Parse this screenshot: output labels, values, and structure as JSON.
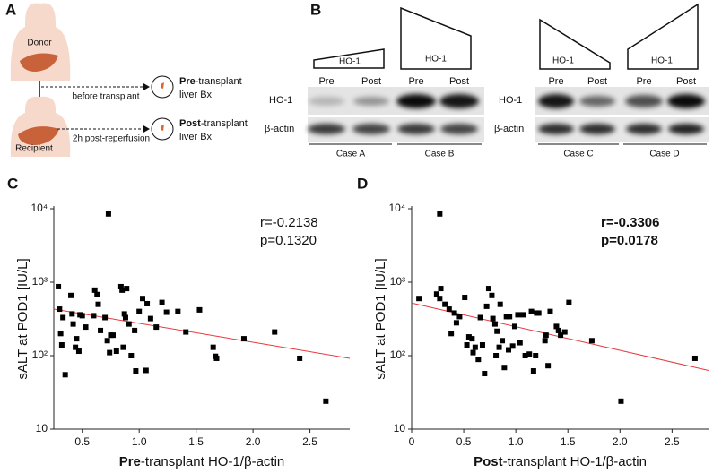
{
  "panel_labels": [
    "A",
    "B",
    "C",
    "D"
  ],
  "panel_a": {
    "donor": "Donor",
    "recipient": "Recipient",
    "arrows": [
      "before transplant",
      "2h post-reperfusion"
    ],
    "biopsies": [
      {
        "bold": "Pre",
        "rest": "-transplant",
        "line2": "liver Bx"
      },
      {
        "bold": "Post",
        "rest": "-transplant",
        "line2": "liver Bx"
      }
    ]
  },
  "panel_b": {
    "wedges": [
      "HO-1",
      "HO-1",
      "HO-1",
      "HO-1"
    ],
    "blots": [
      {
        "lanes": [
          "Pre",
          "Post",
          "Pre",
          "Post"
        ],
        "rows": [
          "HO-1",
          "β-actin"
        ],
        "cases": [
          "Case A",
          "Case B"
        ]
      },
      {
        "lanes": [
          "Pre",
          "Post",
          "Pre",
          "Post"
        ],
        "rows": [
          "HO-1",
          "β-actin"
        ],
        "cases": [
          "Case C",
          "Case D"
        ]
      }
    ]
  },
  "chart_data": [
    {
      "type": "scatter",
      "color": "#000000",
      "log_y": true,
      "ylabel": "sALT at POD1 [IU/L]",
      "xlabel": {
        "bold": "Pre",
        "rest": "-transplant HO-1/β-actin"
      },
      "annotations": [
        "r=-0.2138",
        "p=0.1320"
      ],
      "annotation_bold": false,
      "xlim": [
        0.25,
        2.85
      ],
      "xticks": [
        0.5,
        {
          "value": 1,
          "label": "1.0"
        },
        1.5,
        {
          "value": 2,
          "label": "2.0"
        },
        2.5
      ],
      "ylim": [
        10,
        10000
      ],
      "yticks": [
        10,
        {
          "value": 100,
          "label": "10²"
        },
        {
          "value": 1000,
          "label": "10³"
        },
        {
          "value": 10000,
          "label": "10⁴"
        }
      ],
      "x": [
        0.29,
        0.3,
        0.31,
        0.32,
        0.33,
        0.35,
        0.4,
        0.41,
        0.42,
        0.44,
        0.45,
        0.47,
        0.48,
        0.5,
        0.53,
        0.6,
        0.61,
        0.63,
        0.64,
        0.66,
        0.7,
        0.72,
        0.73,
        0.74,
        0.75,
        0.77,
        0.8,
        0.84,
        0.85,
        0.86,
        0.87,
        0.88,
        0.89,
        0.91,
        0.93,
        0.96,
        0.97,
        1.0,
        1.03,
        1.06,
        1.07,
        1.1,
        1.15,
        1.2,
        1.24,
        1.34,
        1.41,
        1.53,
        1.65,
        1.67,
        1.68,
        1.92,
        2.19,
        2.41,
        2.64
      ],
      "values": [
        870,
        430,
        200,
        140,
        330,
        55,
        660,
        370,
        270,
        130,
        170,
        115,
        360,
        350,
        245,
        350,
        780,
        680,
        500,
        220,
        330,
        160,
        8500,
        110,
        190,
        190,
        115,
        870,
        780,
        130,
        370,
        330,
        820,
        270,
        100,
        220,
        62,
        400,
        600,
        63,
        510,
        320,
        245,
        530,
        390,
        400,
        210,
        420,
        130,
        98,
        92,
        170,
        210,
        92,
        24
      ],
      "fit": {
        "color": "#e8383d",
        "x": [
          0.25,
          2.85
        ],
        "values": [
          430,
          92
        ]
      }
    },
    {
      "type": "scatter",
      "color": "#000000",
      "log_y": true,
      "ylabel": "sALT at POD1 [IU/L]",
      "xlabel": {
        "bold": "Post",
        "rest": "-transplant HO-1/β-actin"
      },
      "annotations": [
        "r=-0.3306",
        "p=0.0178"
      ],
      "annotation_bold": true,
      "xlim": [
        0,
        2.85
      ],
      "xticks": [
        0,
        0.5,
        {
          "value": 1,
          "label": "1.0"
        },
        1.5,
        {
          "value": 2,
          "label": "2.0"
        },
        2.5
      ],
      "ylim": [
        10,
        10000
      ],
      "yticks": [
        10,
        {
          "value": 100,
          "label": "10²"
        },
        {
          "value": 1000,
          "label": "10³"
        },
        {
          "value": 10000,
          "label": "10⁴"
        }
      ],
      "x": [
        0.07,
        0.24,
        0.27,
        0.28,
        0.32,
        0.36,
        0.38,
        0.41,
        0.43,
        0.46,
        0.51,
        0.53,
        0.55,
        0.58,
        0.59,
        0.61,
        0.64,
        0.66,
        0.68,
        0.7,
        0.72,
        0.74,
        0.77,
        0.78,
        0.8,
        0.81,
        0.82,
        0.84,
        0.85,
        0.87,
        0.89,
        0.91,
        0.93,
        0.94,
        0.97,
        0.99,
        1.02,
        1.04,
        1.07,
        1.09,
        1.13,
        1.15,
        1.17,
        1.2,
        1.22,
        1.28,
        1.29,
        1.31,
        1.33,
        1.39,
        1.41,
        1.43,
        1.47,
        1.51,
        1.73,
        2.01,
        2.72,
        0.27,
        1.19
      ],
      "values": [
        600,
        690,
        600,
        820,
        500,
        430,
        200,
        380,
        280,
        340,
        620,
        140,
        180,
        170,
        110,
        130,
        89,
        330,
        140,
        57,
        470,
        820,
        660,
        320,
        270,
        100,
        215,
        130,
        500,
        160,
        69,
        340,
        120,
        340,
        135,
        250,
        360,
        150,
        360,
        100,
        105,
        400,
        62,
        380,
        380,
        160,
        190,
        73,
        400,
        250,
        220,
        190,
        210,
        530,
        160,
        24,
        92,
        8500,
        100
      ],
      "fit": {
        "color": "#e8383d",
        "x": [
          0,
          2.85
        ],
        "values": [
          520,
          63
        ]
      }
    }
  ]
}
